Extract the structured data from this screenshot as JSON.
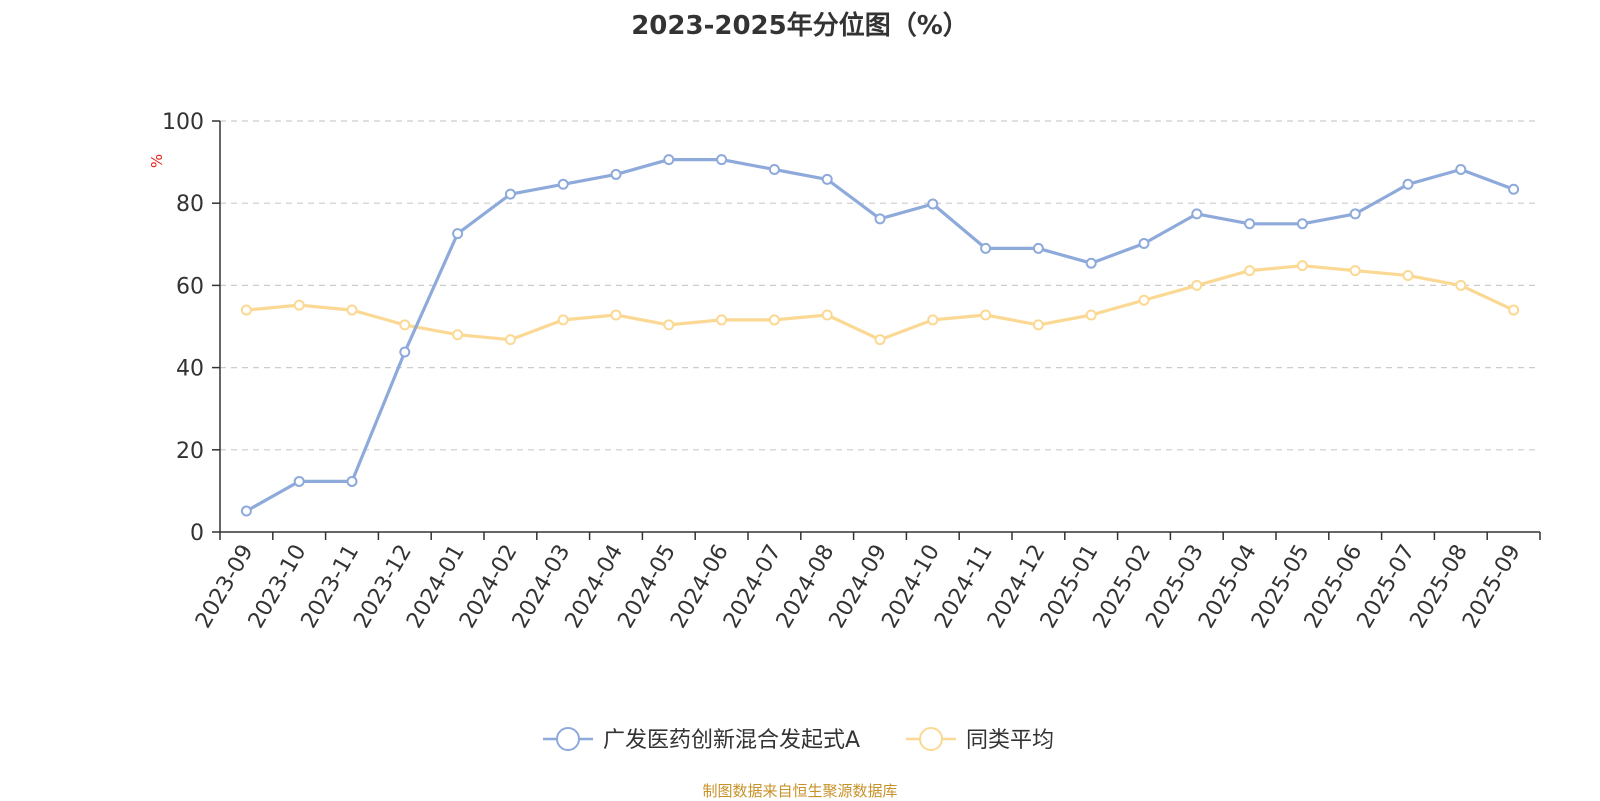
{
  "chart_data": {
    "type": "line",
    "title": "2023-2025年分位图（%）",
    "ylabel": "%",
    "ylim": [
      0,
      100
    ],
    "yticks": [
      0,
      20,
      40,
      60,
      80,
      100
    ],
    "grid": true,
    "legend_position": "bottom",
    "categories": [
      "2023-09",
      "2023-10",
      "2023-11",
      "2023-12",
      "2024-01",
      "2024-02",
      "2024-03",
      "2024-04",
      "2024-05",
      "2024-06",
      "2024-07",
      "2024-08",
      "2024-09",
      "2024-10",
      "2024-11",
      "2024-12",
      "2025-01",
      "2025-02",
      "2025-03",
      "2025-04",
      "2025-05",
      "2025-06",
      "2025-07",
      "2025-08",
      "2025-09"
    ],
    "series": [
      {
        "name": "广发医药创新混合发起式A",
        "color": "#8eaadb",
        "values": [
          5.1,
          12.3,
          12.3,
          43.8,
          72.6,
          82.2,
          84.6,
          87.0,
          90.6,
          90.6,
          88.2,
          85.8,
          76.2,
          79.8,
          69.0,
          69.0,
          65.4,
          70.2,
          77.4,
          75.0,
          75.0,
          77.4,
          84.6,
          88.2,
          83.4
        ]
      },
      {
        "name": "同类平均",
        "color": "#fbd994",
        "values": [
          54.0,
          55.2,
          54.0,
          50.4,
          48.0,
          46.8,
          51.6,
          52.8,
          50.4,
          51.6,
          51.6,
          52.8,
          46.8,
          51.6,
          52.8,
          50.4,
          52.8,
          56.4,
          60.0,
          63.6,
          64.8,
          63.6,
          62.4,
          60.0,
          54.0
        ]
      }
    ]
  },
  "source_note": "制图数据来自恒生聚源数据库"
}
